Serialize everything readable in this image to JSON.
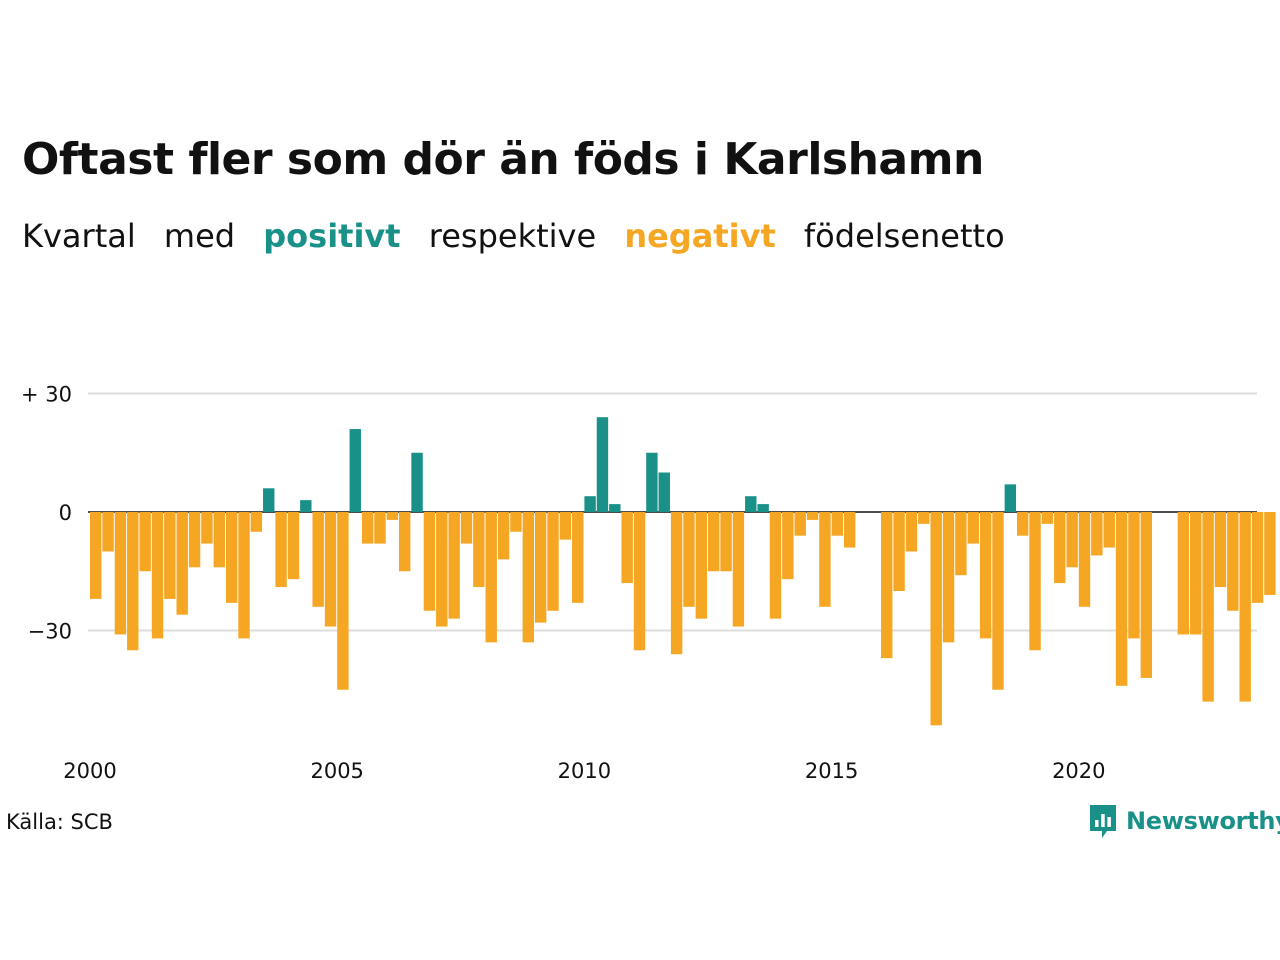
{
  "title": "Oftast fler som dör än föds i Karlshamn",
  "subtitle": {
    "w1": "Kvartal",
    "w2": "med",
    "positive_word": "positivt",
    "w3": "respektive",
    "negative_word": "negativt",
    "w4": "födelsenetto"
  },
  "source": "Källa: SCB",
  "logo": {
    "text": "Newsworthy",
    "icon": "newsworthy-chat-bar-icon"
  },
  "colors": {
    "positive": "#1a9188",
    "negative": "#f5a623",
    "grid": "#dddddd",
    "axis": "#111111"
  },
  "chart_data": {
    "type": "bar",
    "start_year": 2000,
    "interval": "quarter",
    "ylim": [
      -55,
      32
    ],
    "y_ticks": [
      30,
      0,
      -30
    ],
    "y_tick_labels": [
      "+ 30",
      "0",
      "−30"
    ],
    "x_tick_labels": [
      "2000",
      "2005",
      "2010",
      "2015",
      "2020"
    ],
    "grid": true,
    "legend": "none",
    "values": [
      -22,
      -10,
      -31,
      -35,
      -15,
      -32,
      -22,
      -26,
      -14,
      -8,
      -14,
      -23,
      -32,
      -5,
      6,
      -19,
      -17,
      3,
      -24,
      -29,
      -45,
      21,
      -8,
      -8,
      -2,
      -15,
      15,
      -25,
      -29,
      -27,
      -8,
      -19,
      -33,
      -12,
      -5,
      -33,
      -28,
      -25,
      -7,
      -23,
      4,
      24,
      2,
      -18,
      -35,
      15,
      10,
      -36,
      -24,
      -27,
      -15,
      -15,
      -29,
      4,
      2,
      -27,
      -17,
      -6,
      -2,
      -24,
      -6,
      -9,
      0,
      0,
      -37,
      -20,
      -10,
      -3,
      -54,
      -33,
      -16,
      -8,
      -32,
      -45,
      7,
      -6,
      -35,
      -3,
      -18,
      -14,
      -24,
      -11,
      -9,
      -44,
      -32,
      -42,
      0,
      0,
      -31,
      -31,
      -48,
      -19,
      -25,
      -48,
      -23,
      -21
    ]
  }
}
